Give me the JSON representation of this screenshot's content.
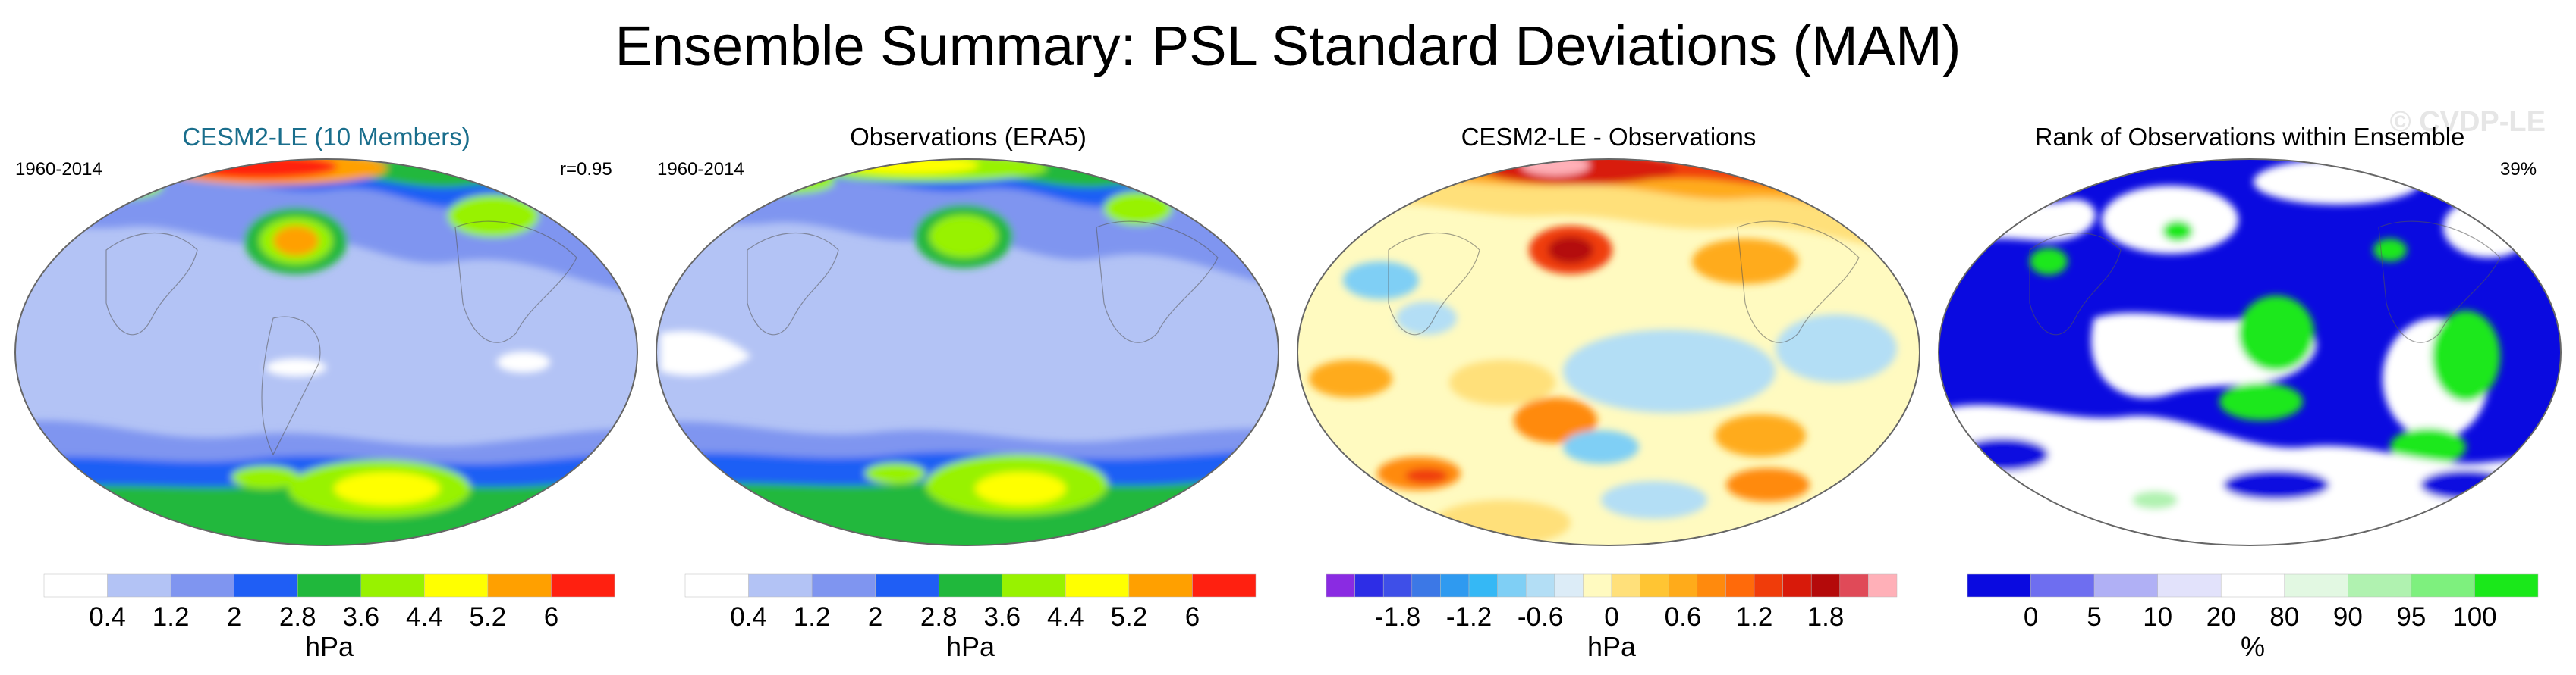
{
  "title": "Ensemble Summary: PSL Standard Deviations (MAM)",
  "watermark": "© CVDP-LE",
  "panels": [
    {
      "title": "CESM2-LE (10 Members)",
      "left_label": "1960-2014",
      "right_label": "r=0.95",
      "title_color": "#1a6e8c"
    },
    {
      "title": "Observations (ERA5)",
      "left_label": "1960-2014",
      "right_label": "",
      "title_color": "#000000"
    },
    {
      "title": "CESM2-LE - Observations",
      "left_label": "",
      "right_label": "",
      "title_color": "#000000"
    },
    {
      "title": "Rank of Observations within Ensemble",
      "left_label": "",
      "right_label": "39%",
      "title_color": "#000000"
    }
  ],
  "chart_data": [
    {
      "type": "heatmap",
      "title": "CESM2-LE (10 Members)",
      "period": "1960-2014",
      "pattern_correlation": "r=0.95",
      "colorbar": {
        "unit": "hPa",
        "tick_labels": [
          "0.4",
          "1.2",
          "2",
          "2.8",
          "3.6",
          "4.4",
          "5.2",
          "6"
        ],
        "colors": [
          "#ffffff",
          "#b3c3f5",
          "#7f95f0",
          "#1f5ef5",
          "#20b83c",
          "#98f200",
          "#ffff00",
          "#ffa000",
          "#ff2010"
        ]
      }
    },
    {
      "type": "heatmap",
      "title": "Observations (ERA5)",
      "period": "1960-2014",
      "colorbar": {
        "unit": "hPa",
        "tick_labels": [
          "0.4",
          "1.2",
          "2",
          "2.8",
          "3.6",
          "4.4",
          "5.2",
          "6"
        ],
        "colors": [
          "#ffffff",
          "#b3c3f5",
          "#7f95f0",
          "#1f5ef5",
          "#20b83c",
          "#98f200",
          "#ffff00",
          "#ffa000",
          "#ff2010"
        ]
      }
    },
    {
      "type": "heatmap",
      "title": "CESM2-LE - Observations",
      "colorbar": {
        "unit": "hPa",
        "tick_labels": [
          "-1.8",
          "-1.2",
          "-0.6",
          "0",
          "0.6",
          "1.2",
          "1.8"
        ],
        "colors": [
          "#8a2be2",
          "#2d2de6",
          "#3e4fe8",
          "#3c78e6",
          "#2f9af0",
          "#35b8f5",
          "#7fcff5",
          "#b3def5",
          "#dcecf7",
          "#fffac0",
          "#ffe07a",
          "#ffc533",
          "#ffab1a",
          "#ff8a0d",
          "#ff6a0a",
          "#f03c0a",
          "#d81a0a",
          "#b40a0a",
          "#e04a58",
          "#ffb0b8"
        ]
      }
    },
    {
      "type": "heatmap",
      "title": "Rank of Observations within Ensemble",
      "rank_summary": "39%",
      "colorbar": {
        "unit": "%",
        "tick_labels": [
          "0",
          "5",
          "10",
          "20",
          "80",
          "90",
          "95",
          "100"
        ],
        "colors": [
          "#0a0ae0",
          "#6e6ef0",
          "#b0b0f5",
          "#e2e2fb",
          "#ffffff",
          "#e2f8e2",
          "#b0f2b0",
          "#7ef07e",
          "#1ae81a"
        ]
      }
    }
  ]
}
